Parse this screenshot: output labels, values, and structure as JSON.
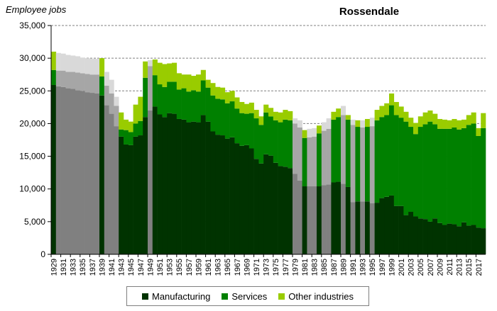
{
  "chart_data": {
    "type": "bar",
    "stacked": true,
    "title": "Rossendale",
    "ylabel": "Employee jobs",
    "xlabel": "",
    "ylim": [
      0,
      35000
    ],
    "yticks": [
      0,
      5000,
      10000,
      15000,
      20000,
      25000,
      30000,
      35000
    ],
    "ytick_labels": [
      "0",
      "5,000",
      "10,000",
      "15,000",
      "20,000",
      "25,000",
      "30,000",
      "35,000"
    ],
    "grid": "horizontal dashed",
    "legend_position": "bottom",
    "x": [
      1929,
      1930,
      1931,
      1932,
      1933,
      1934,
      1935,
      1936,
      1937,
      1938,
      1939,
      1940,
      1941,
      1942,
      1943,
      1944,
      1945,
      1946,
      1947,
      1948,
      1949,
      1950,
      1951,
      1952,
      1953,
      1954,
      1955,
      1956,
      1957,
      1958,
      1959,
      1960,
      1961,
      1962,
      1963,
      1964,
      1965,
      1966,
      1967,
      1968,
      1969,
      1970,
      1971,
      1972,
      1973,
      1974,
      1975,
      1976,
      1977,
      1978,
      1979,
      1980,
      1981,
      1982,
      1983,
      1984,
      1985,
      1986,
      1987,
      1988,
      1989,
      1990,
      1991,
      1992,
      1993,
      1994,
      1995,
      1996,
      1997,
      1998,
      1999,
      2000,
      2001,
      2002,
      2003,
      2004,
      2005,
      2006,
      2007,
      2008,
      2009,
      2010,
      2011,
      2012,
      2013,
      2014,
      2015,
      2016,
      2017,
      2018
    ],
    "xtick_labels": [
      "1929",
      "1931",
      "1933",
      "1935",
      "1937",
      "1939",
      "1941",
      "1943",
      "1945",
      "1947",
      "1949",
      "1951",
      "1953",
      "1955",
      "1957",
      "1959",
      "1961",
      "1963",
      "1965",
      "1967",
      "1969",
      "1971",
      "1973",
      "1975",
      "1977",
      "1979",
      "1981",
      "1983",
      "1985",
      "1987",
      "1989",
      "1991",
      "1993",
      "1995",
      "1997",
      "1999",
      "2001",
      "2003",
      "2005",
      "2007",
      "2009",
      "2011",
      "2013",
      "2015",
      "2017"
    ],
    "estimated": [
      0,
      1,
      1,
      1,
      1,
      1,
      1,
      1,
      1,
      1,
      0,
      1,
      1,
      1,
      0,
      0,
      0,
      0,
      0,
      0,
      1,
      0,
      0,
      0,
      0,
      0,
      0,
      0,
      0,
      0,
      0,
      0,
      0,
      0,
      0,
      0,
      0,
      0,
      0,
      0,
      0,
      0,
      0,
      0,
      0,
      0,
      0,
      0,
      0,
      0,
      1,
      1,
      0,
      1,
      1,
      0,
      1,
      1,
      0,
      0,
      1,
      0,
      1,
      0,
      1,
      0,
      1,
      0,
      0,
      0,
      0,
      0,
      0,
      0,
      0,
      0,
      0,
      0,
      0,
      0,
      0,
      0,
      0,
      0,
      0,
      0,
      0,
      0,
      0,
      0
    ],
    "series": [
      {
        "name": "Manufacturing",
        "color": "#003300",
        "estimated_color": "#808080",
        "values": [
          25900,
          25700,
          25600,
          25400,
          25300,
          25100,
          25000,
          24800,
          24700,
          24600,
          24300,
          22800,
          21500,
          19600,
          18000,
          16800,
          16700,
          18000,
          18200,
          21000,
          22000,
          22600,
          21400,
          21000,
          21600,
          21500,
          20700,
          20600,
          20200,
          20300,
          20200,
          21300,
          20300,
          18800,
          18300,
          18200,
          17700,
          17900,
          17000,
          16600,
          16700,
          16200,
          14600,
          13900,
          15300,
          15100,
          14000,
          13500,
          13400,
          13200,
          12300,
          11300,
          10400,
          10400,
          10400,
          10400,
          10600,
          10700,
          11000,
          11100,
          10800,
          10300,
          8000,
          8100,
          8100,
          8100,
          7800,
          7900,
          8600,
          8800,
          9000,
          7400,
          7400,
          6000,
          6500,
          5800,
          5500,
          5400,
          5000,
          5500,
          4800,
          4500,
          4700,
          4600,
          4300,
          4900,
          4400,
          4500,
          4100,
          4000
        ]
      },
      {
        "name": "Services",
        "color": "#008000",
        "estimated_color": "#a6a6a6",
        "values": [
          2300,
          2400,
          2500,
          2500,
          2600,
          2700,
          2700,
          2800,
          2800,
          2900,
          2900,
          3000,
          3100,
          3100,
          1100,
          2200,
          2000,
          2000,
          2200,
          6000,
          6800,
          4800,
          4600,
          4600,
          4800,
          4900,
          4500,
          4800,
          4700,
          4800,
          4700,
          5300,
          5200,
          5500,
          5500,
          5500,
          5400,
          5500,
          5300,
          5000,
          4800,
          5400,
          6200,
          5900,
          6400,
          6000,
          6500,
          6700,
          7200,
          7300,
          7700,
          8100,
          7400,
          7500,
          7600,
          8100,
          8300,
          8500,
          9600,
          9900,
          10500,
          10300,
          11800,
          11400,
          11300,
          11400,
          11800,
          12600,
          12400,
          12500,
          13800,
          13900,
          13500,
          14300,
          13000,
          12600,
          14000,
          14500,
          15300,
          14400,
          14400,
          14700,
          14500,
          14800,
          14800,
          14400,
          15400,
          15500,
          14000,
          15300
        ]
      },
      {
        "name": "Other industries",
        "color": "#99cc00",
        "estimated_color": "#d9d9d9",
        "values": [
          2800,
          2700,
          2600,
          2600,
          2500,
          2500,
          2400,
          2400,
          2400,
          2400,
          2800,
          2100,
          2100,
          1400,
          2600,
          1600,
          1600,
          2900,
          3700,
          2500,
          900,
          2400,
          3300,
          3500,
          2800,
          2900,
          2500,
          2100,
          2600,
          2200,
          2600,
          1600,
          1200,
          1900,
          1800,
          1800,
          1700,
          1600,
          1700,
          1700,
          1500,
          1600,
          1300,
          1300,
          1200,
          1300,
          1300,
          1500,
          1500,
          1400,
          800,
          1100,
          1200,
          1300,
          1300,
          1200,
          1300,
          1600,
          1200,
          1300,
          1400,
          700,
          800,
          1000,
          1100,
          1200,
          1300,
          1600,
          1700,
          1800,
          1800,
          2000,
          1700,
          1500,
          1400,
          1700,
          1600,
          1800,
          1700,
          1600,
          1500,
          1400,
          1300,
          1300,
          1400,
          1300,
          1500,
          1700,
          1200,
          2300
        ]
      }
    ]
  }
}
